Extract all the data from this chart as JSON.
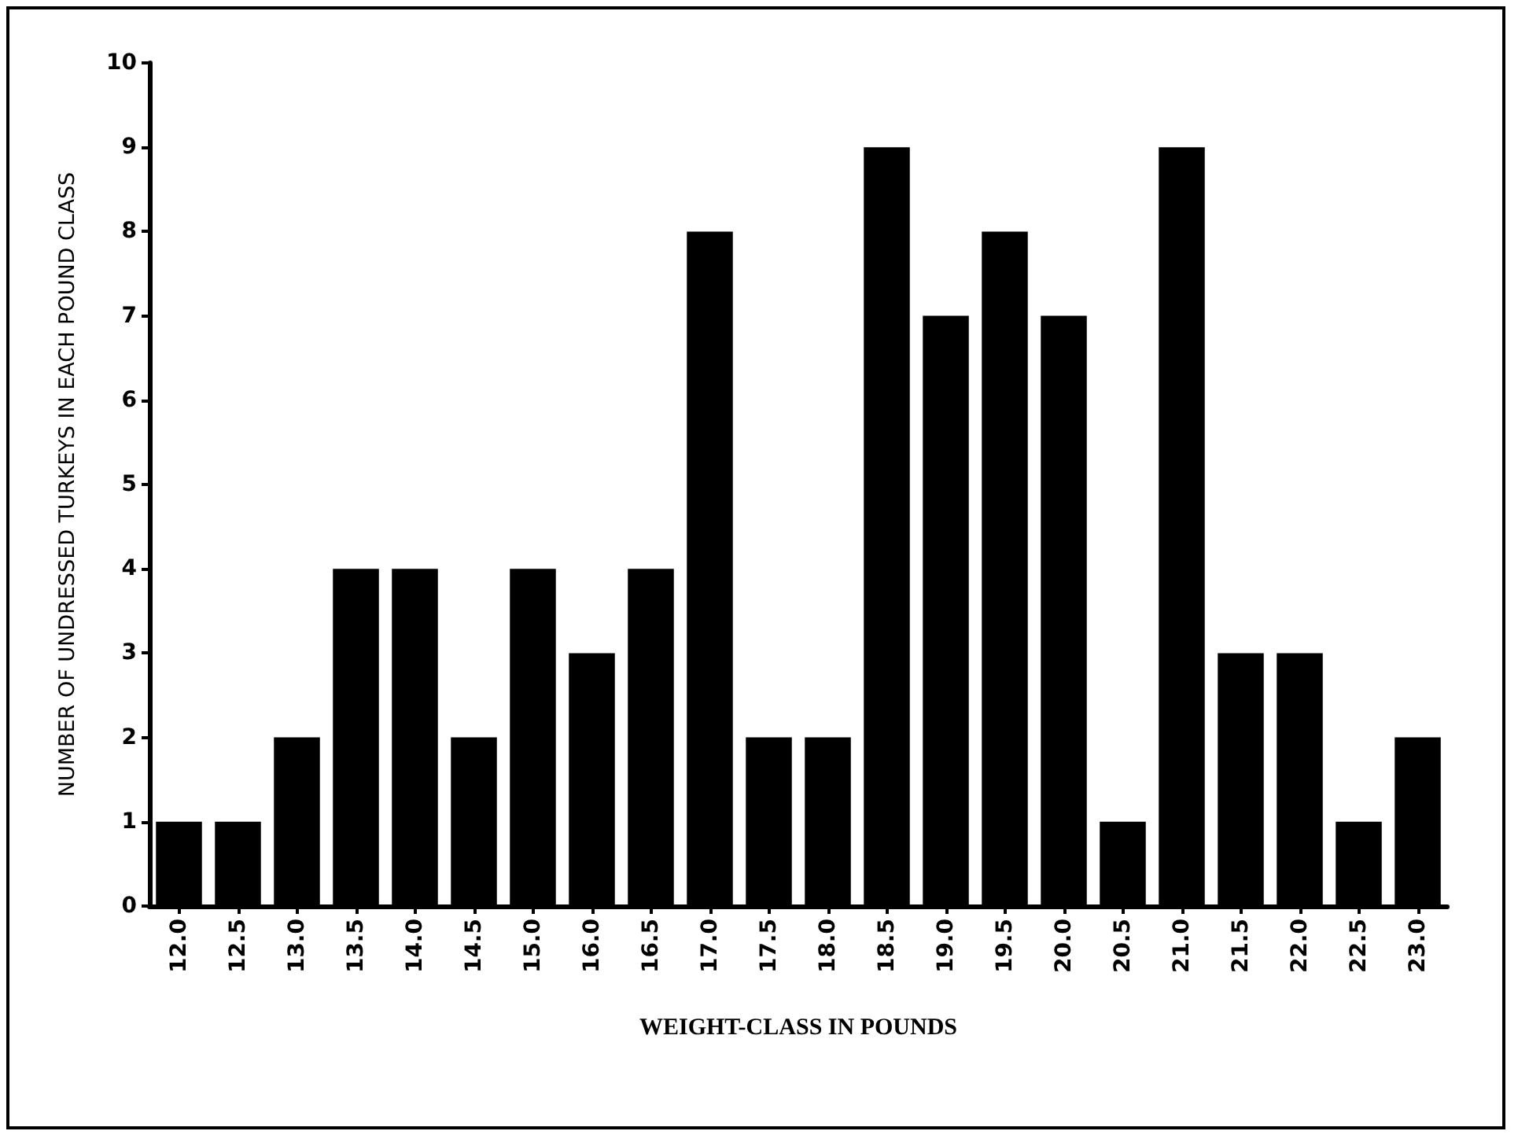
{
  "chart_data": {
    "type": "bar",
    "xlabel": "WEIGHT-CLASS IN POUNDS",
    "ylabel": "NUMBER OF UNDRESSED TURKEYS IN EACH POUND CLASS",
    "categories": [
      "12.0",
      "12.5",
      "13.0",
      "13.5",
      "14.0",
      "14.5",
      "15.0",
      "16.0",
      "16.5",
      "17.0",
      "17.5",
      "18.0",
      "18.5",
      "19.0",
      "19.5",
      "20.0",
      "20.5",
      "21.0",
      "21.5",
      "22.0",
      "22.5",
      "23.0"
    ],
    "values": [
      1,
      1,
      2,
      4,
      4,
      2,
      4,
      3,
      4,
      8,
      2,
      2,
      9,
      7,
      8,
      7,
      1,
      9,
      3,
      3,
      1,
      2
    ],
    "color": "#000000",
    "ylim": [
      0,
      10
    ],
    "yticks": [
      0,
      1,
      2,
      3,
      4,
      5,
      6,
      7,
      8,
      9,
      10
    ],
    "grid": false
  }
}
